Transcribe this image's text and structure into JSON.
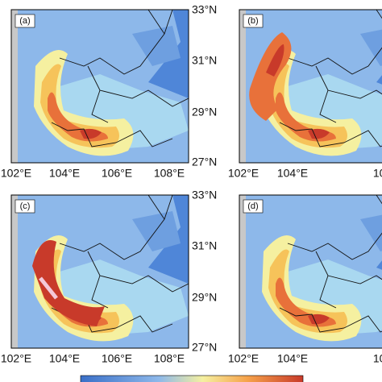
{
  "panels": [
    {
      "label": "(a)"
    },
    {
      "label": "(b)"
    },
    {
      "label": "(c)"
    },
    {
      "label": "(d)"
    }
  ],
  "x_ticks": [
    "102°E",
    "104°E",
    "106°E",
    "108°E"
  ],
  "y_ticks": [
    "33°N",
    "31°N",
    "29°N",
    "27°N"
  ]
}
